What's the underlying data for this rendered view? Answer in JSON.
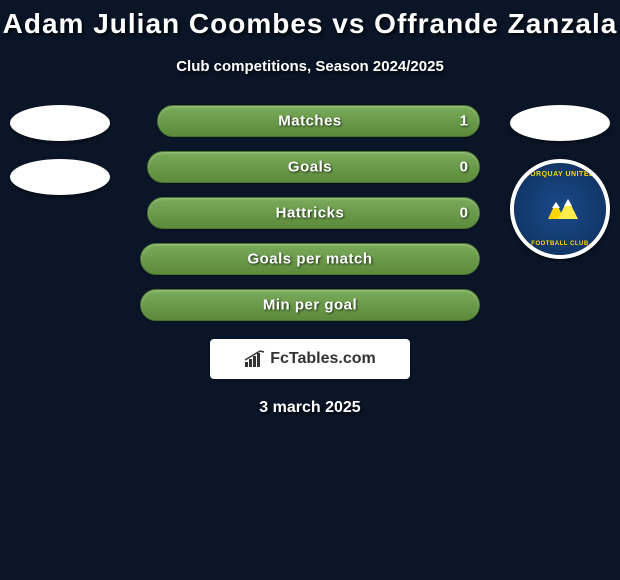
{
  "title": "Adam Julian Coombes vs Offrande Zanzala",
  "subtitle": "Club competitions, Season 2024/2025",
  "date": "3 march 2025",
  "brand": "FcTables.com",
  "colors": {
    "background": "#0a1628",
    "bar_gradient_top": "#7aab5a",
    "bar_gradient_bottom": "#5a8a3a",
    "bar_border": "#4a7030",
    "text": "#ffffff",
    "torquay_bg": "#1a4a8a",
    "torquay_gold": "#ffd700"
  },
  "left_player": {
    "name": "Adam Julian Coombes",
    "portraits": 2
  },
  "right_player": {
    "name": "Offrande Zanzala",
    "portraits": 1,
    "club": "Torquay United",
    "club_text_top": "TORQUAY UNITED",
    "club_text_bottom": "FOOTBALL CLUB"
  },
  "stats": [
    {
      "label": "Matches",
      "right_value": "1",
      "bar_left_pct": 0,
      "bar_right_pct": 95
    },
    {
      "label": "Goals",
      "right_value": "0",
      "bar_left_pct": 0,
      "bar_right_pct": 98
    },
    {
      "label": "Hattricks",
      "right_value": "0",
      "bar_left_pct": 0,
      "bar_right_pct": 98
    },
    {
      "label": "Goals per match",
      "bar_left_pct": 0,
      "bar_right_pct": 100
    },
    {
      "label": "Min per goal",
      "bar_left_pct": 0,
      "bar_right_pct": 100
    }
  ]
}
